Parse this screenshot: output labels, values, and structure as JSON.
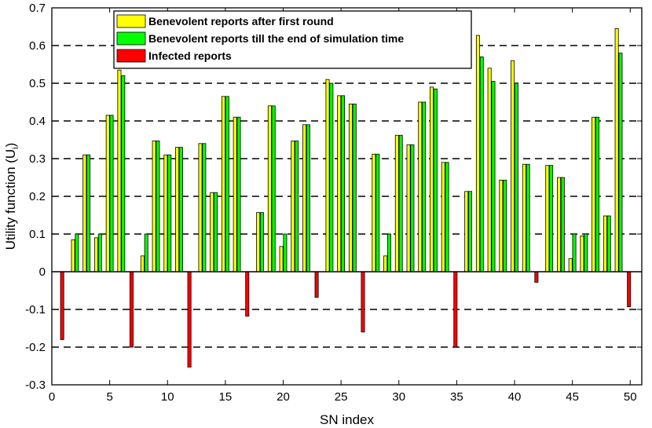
{
  "chart_data": {
    "type": "bar",
    "xlabel": "SN index",
    "ylabel": "Utility function (U",
    "ylabel_sub": "i",
    "ylabel_close": ")",
    "xlim": [
      0,
      51
    ],
    "ylim": [
      -0.3,
      0.7
    ],
    "xticks": [
      0,
      5,
      10,
      15,
      20,
      25,
      30,
      35,
      40,
      45,
      50
    ],
    "yticks": [
      -0.3,
      -0.2,
      -0.1,
      0,
      0.1,
      0.2,
      0.3,
      0.4,
      0.5,
      0.6,
      0.7
    ],
    "grid": "horizontal-dashed",
    "legend_position": "top-left",
    "series": [
      {
        "name": "Benevolent reports after first round",
        "color": "#ffff00",
        "values": [
          0,
          0.085,
          0.31,
          0.09,
          0.415,
          0.535,
          0,
          0.042,
          0.347,
          0.31,
          0.33,
          0,
          0.34,
          0.21,
          0.465,
          0.41,
          0,
          0.157,
          0.44,
          0.067,
          0.347,
          0.39,
          0,
          0.51,
          0.467,
          0.445,
          0,
          0.312,
          0.042,
          0.362,
          0.337,
          0.45,
          0.49,
          0.29,
          0,
          0.213,
          0.627,
          0.54,
          0.243,
          0.56,
          0.285,
          0,
          0.282,
          0.25,
          0.035,
          0.095,
          0.41,
          0.148,
          0.645,
          0
        ]
      },
      {
        "name": "Benevolent reports till the end of simulation time",
        "color": "#00ff00",
        "values": [
          0,
          0.1,
          0.31,
          0.1,
          0.415,
          0.52,
          0,
          0.1,
          0.347,
          0.31,
          0.33,
          0,
          0.34,
          0.21,
          0.465,
          0.41,
          0,
          0.157,
          0.44,
          0.1,
          0.347,
          0.39,
          0,
          0.5,
          0.467,
          0.445,
          0,
          0.312,
          0.1,
          0.362,
          0.337,
          0.45,
          0.485,
          0.29,
          0,
          0.213,
          0.57,
          0.505,
          0.243,
          0.5,
          0.285,
          0,
          0.282,
          0.25,
          0.1,
          0.1,
          0.41,
          0.148,
          0.58,
          0
        ]
      },
      {
        "name": "Infected reports",
        "color": "#ff0000",
        "values": [
          -0.18,
          0,
          0,
          0,
          0,
          0,
          -0.2,
          0,
          0,
          0,
          0,
          -0.253,
          0,
          0,
          0,
          0,
          -0.118,
          0,
          0,
          0,
          0,
          0,
          -0.068,
          0,
          0,
          0,
          -0.16,
          0,
          0,
          0,
          0,
          0,
          0,
          0,
          -0.2,
          0,
          0,
          0,
          0,
          0,
          0,
          -0.028,
          0,
          0,
          0,
          0,
          0,
          0,
          0,
          -0.093
        ]
      }
    ]
  }
}
